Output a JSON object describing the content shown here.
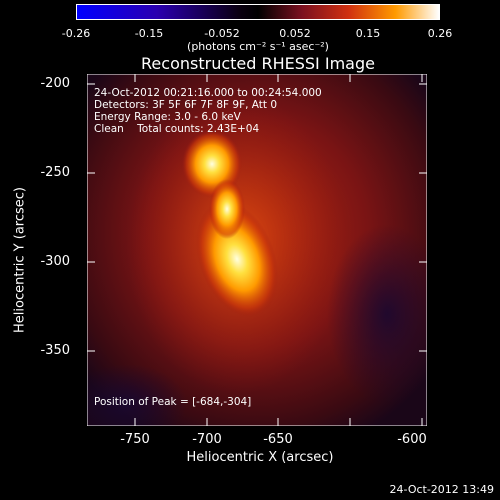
{
  "colorbar": {
    "ticks": [
      "-0.26",
      "-0.15",
      "-0.052",
      "0.052",
      "0.15",
      "0.26"
    ],
    "units": "(photons cm⁻² s⁻¹ asec⁻²)",
    "range": [
      -0.26,
      0.26
    ]
  },
  "title": "Reconstructed RHESSI Image",
  "info": {
    "time": "24-Oct-2012 00:21:16.000 to 00:24:54.000",
    "detectors": "Detectors: 3F 5F 6F 7F 8F 9F, Att 0",
    "energy": "Energy Range: 3.0 - 6.0 keV",
    "clean": "Clean    Total counts: 2.43E+04"
  },
  "peak": "Position of Peak = [-684,-304]",
  "axes": {
    "xlabel": "Heliocentric X (arcsec)",
    "ylabel": "Heliocentric Y (arcsec)",
    "xticks": [
      "-750",
      "-700",
      "-650",
      "-600"
    ],
    "yticks": [
      "-200",
      "-250",
      "-300",
      "-350"
    ],
    "xrange": [
      -780,
      -590
    ],
    "yrange": [
      -387,
      -190
    ]
  },
  "timestamp": "24-Oct-2012 13:49",
  "colors": {
    "background": "#000000"
  }
}
